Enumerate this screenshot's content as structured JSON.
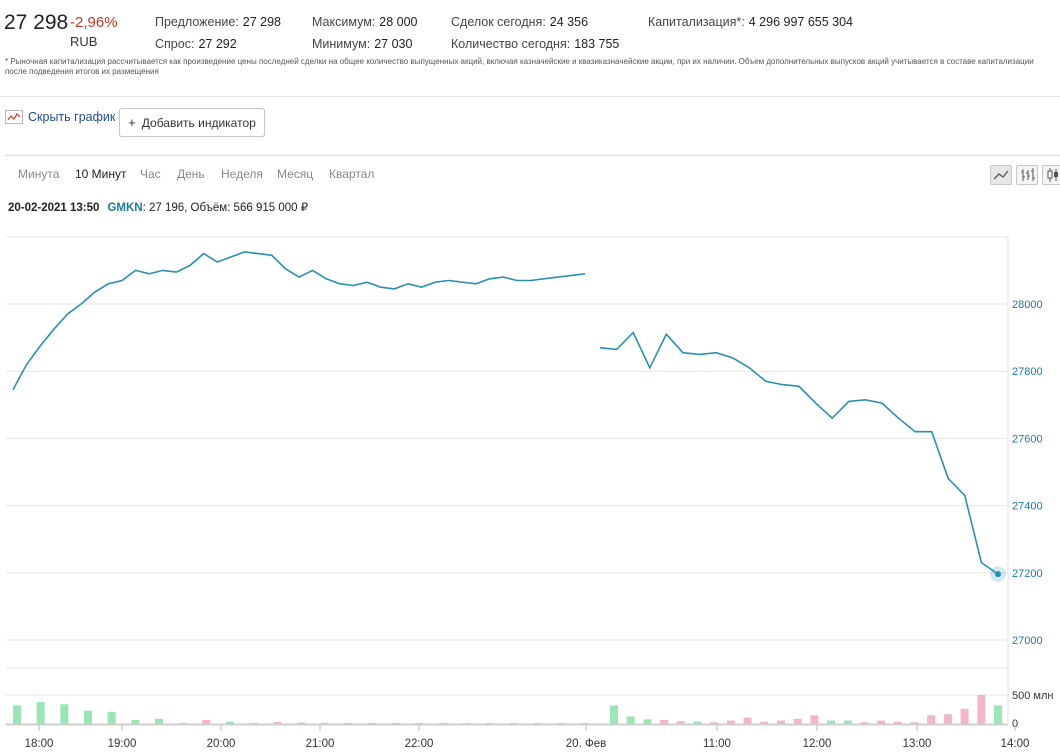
{
  "header": {
    "price": "27 298",
    "change": "-2,96%",
    "currency": "RUB",
    "stats": [
      {
        "label": "Предложение:",
        "value": "27 298"
      },
      {
        "label": "Спрос:",
        "value": "27 292"
      },
      {
        "label": "Максимум:",
        "value": "28 000"
      },
      {
        "label": "Минимум:",
        "value": "27 030"
      },
      {
        "label": "Сделок сегодня:",
        "value": "24 356"
      },
      {
        "label": "Количество сегодня:",
        "value": "183 755"
      },
      {
        "label": "Капитализация*:",
        "value": "4 296 997 655 304"
      }
    ],
    "footnote": "* Рыночная капитализация рассчитывается как произведение цены последней сделки на общее количество выпущенных акций, включая казначейские и квазиказначейские акции, при их наличии. Объем дополнительных выпусков акций учитывается в составе капитализации после подведения итогов их размещения"
  },
  "controls": {
    "hide_chart": "Скрыть график",
    "add_indicator": "Добавить индикатор",
    "add_plus": "+"
  },
  "tabs": [
    "Минута",
    "10 Минут",
    "Час",
    "День",
    "Неделя",
    "Месяц",
    "Квартал"
  ],
  "active_tab": "10 Минут",
  "toolbar_icons": [
    "line-chart-icon",
    "ohlc-bars-icon",
    "candlestick-icon"
  ],
  "tooltip": {
    "datetime": "20-02-2021 13:50",
    "ticker": "GMKN",
    "rest": ": 27 196, Объём: 566 915 000 ₽"
  },
  "colors": {
    "line": "#2a8fb0",
    "vol_up": "#9ae6b4",
    "vol_down": "#f3b6c9",
    "axis_text": "#1f7a9e",
    "change": "#c0392b"
  },
  "chart_data": {
    "type": "line",
    "ylim": [
      27000,
      28200
    ],
    "yticks": [
      27000,
      27200,
      27400,
      27600,
      27800,
      28000
    ],
    "xticks": [
      "18:00",
      "19:00",
      "20:00",
      "21:00",
      "22:00",
      "20. Фев",
      "11:00",
      "12:00",
      "13:00",
      "14:00"
    ],
    "volume_tick_labels": [
      "500 млн",
      "0"
    ],
    "series": [
      {
        "segments": [
          [
            27745,
            27820,
            27875,
            27925,
            27970,
            28000,
            28035,
            28060,
            28070,
            28100,
            28090,
            28100,
            28095,
            28115,
            28150,
            28125,
            28140,
            28155,
            28150,
            28145,
            28105,
            28080,
            28100,
            28075,
            28060,
            28055,
            28065,
            28050,
            28045,
            28060,
            28050,
            28065,
            28070,
            28065,
            28060,
            28075,
            28080,
            28070,
            28070,
            28075,
            28080,
            28085,
            28090
          ],
          [
            27870,
            27865,
            27915,
            27810,
            27910,
            27855,
            27850,
            27855,
            27840,
            27810,
            27770,
            27760,
            27755,
            27705,
            27660,
            27710,
            27715,
            27705,
            27660,
            27620,
            27620,
            27480,
            27430,
            27230,
            27196
          ]
        ]
      }
    ],
    "volume_millions": [
      {
        "v": 320,
        "d": "up"
      },
      {
        "v": 380,
        "d": "up"
      },
      {
        "v": 340,
        "d": "up"
      },
      {
        "v": 230,
        "d": "up"
      },
      {
        "v": 210,
        "d": "up"
      },
      {
        "v": 70,
        "d": "up"
      },
      {
        "v": 90,
        "d": "up"
      },
      {
        "v": 20,
        "d": "down"
      },
      {
        "v": 70,
        "d": "down"
      },
      {
        "v": 40,
        "d": "up"
      },
      {
        "v": 20,
        "d": "down"
      },
      {
        "v": 35,
        "d": "down"
      },
      {
        "v": 25,
        "d": "down"
      },
      {
        "v": 20,
        "d": "up"
      },
      {
        "v": 15,
        "d": "down"
      },
      {
        "v": 12,
        "d": "down"
      },
      {
        "v": 10,
        "d": "up"
      },
      {
        "v": 8,
        "d": "down"
      },
      {
        "v": 10,
        "d": "down"
      },
      {
        "v": 8,
        "d": "down"
      },
      {
        "v": 6,
        "d": "up"
      },
      {
        "v": 8,
        "d": "down"
      },
      {
        "v": 5,
        "d": "down"
      },
      {
        "v": 5,
        "d": "down"
      },
      {
        "v": 10,
        "d": "down"
      },
      {
        "v": 320,
        "d": "up"
      },
      {
        "v": 130,
        "d": "up"
      },
      {
        "v": 80,
        "d": "up"
      },
      {
        "v": 70,
        "d": "down"
      },
      {
        "v": 50,
        "d": "down"
      },
      {
        "v": 40,
        "d": "up"
      },
      {
        "v": 30,
        "d": "down"
      },
      {
        "v": 60,
        "d": "down"
      },
      {
        "v": 110,
        "d": "down"
      },
      {
        "v": 40,
        "d": "down"
      },
      {
        "v": 60,
        "d": "down"
      },
      {
        "v": 90,
        "d": "down"
      },
      {
        "v": 150,
        "d": "down"
      },
      {
        "v": 60,
        "d": "up"
      },
      {
        "v": 60,
        "d": "up"
      },
      {
        "v": 30,
        "d": "down"
      },
      {
        "v": 60,
        "d": "down"
      },
      {
        "v": 40,
        "d": "down"
      },
      {
        "v": 30,
        "d": "down"
      },
      {
        "v": 150,
        "d": "down"
      },
      {
        "v": 170,
        "d": "down"
      },
      {
        "v": 260,
        "d": "down"
      },
      {
        "v": 500,
        "d": "down"
      },
      {
        "v": 320,
        "d": "up"
      }
    ]
  }
}
